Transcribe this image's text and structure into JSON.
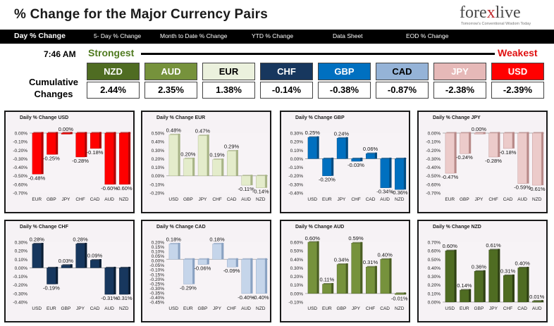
{
  "header": {
    "title": "% Change for the Major Currency Pairs",
    "logo_main": "fore",
    "logo_x": "x",
    "logo_end": "live",
    "logo_tagline": "Tomorrow's Conventional Wisdom Today"
  },
  "nav": {
    "items": [
      "Day % Change",
      "5- Day % Change",
      "Month to Date % Change",
      "YTD % Change",
      "Data Sheet",
      "EOD % Change"
    ]
  },
  "summary": {
    "time": "7:46 AM",
    "strongest_label": "Strongest",
    "weakest_label": "Weakest",
    "cumulative_label_1": "Cumulative",
    "cumulative_label_2": "Changes",
    "currencies": [
      {
        "name": "NZD",
        "value": "2.44%",
        "bg": "#4f6c22",
        "fg": "#ffffff"
      },
      {
        "name": "AUD",
        "value": "2.35%",
        "bg": "#76923c",
        "fg": "#ffffff"
      },
      {
        "name": "EUR",
        "value": "1.38%",
        "bg": "#ebf1dd",
        "fg": "#000000"
      },
      {
        "name": "CHF",
        "value": "-0.14%",
        "bg": "#17375e",
        "fg": "#ffffff"
      },
      {
        "name": "GBP",
        "value": "-0.38%",
        "bg": "#0070c0",
        "fg": "#ffffff"
      },
      {
        "name": "CAD",
        "value": "-0.87%",
        "bg": "#95b3d7",
        "fg": "#000000"
      },
      {
        "name": "JPY",
        "value": "-2.38%",
        "bg": "#e6b9b8",
        "fg": "#ffffff"
      },
      {
        "name": "USD",
        "value": "-2.39%",
        "bg": "#ff0000",
        "fg": "#ffffff"
      }
    ]
  },
  "chart_data": [
    {
      "type": "bar",
      "title": "Daily % Change USD",
      "categories": [
        "EUR",
        "GBP",
        "JPY",
        "CHF",
        "CAD",
        "AUD",
        "NZD"
      ],
      "values": [
        -0.48,
        -0.25,
        0.0,
        -0.28,
        -0.18,
        -0.6,
        -0.6
      ],
      "labels": [
        "-0.48%",
        "-0.25%",
        "0.00%",
        "-0.28%",
        "-0.18%",
        "-0.60%",
        "-0.60%"
      ],
      "ylim": [
        -0.7,
        0.0
      ],
      "ticks": [
        "0.00%",
        "-0.10%",
        "-0.20%",
        "-0.30%",
        "-0.40%",
        "-0.50%",
        "-0.60%",
        "-0.70%"
      ],
      "color": "#ff0000",
      "color_dark": "#b00000"
    },
    {
      "type": "bar",
      "title": "Daily % Change EUR",
      "categories": [
        "USD",
        "GBP",
        "JPY",
        "CHF",
        "CAD",
        "AUD",
        "NZD"
      ],
      "values": [
        0.48,
        0.2,
        0.47,
        0.19,
        0.29,
        -0.11,
        -0.14
      ],
      "labels": [
        "0.48%",
        "0.20%",
        "0.47%",
        "0.19%",
        "0.29%",
        "-0.11%",
        "-0.14%"
      ],
      "ylim": [
        -0.2,
        0.5
      ],
      "ticks": [
        "0.50%",
        "0.40%",
        "0.30%",
        "0.20%",
        "0.10%",
        "0.00%",
        "-0.10%",
        "-0.20%"
      ],
      "color": "#e4eccb",
      "color_dark": "#a8b487"
    },
    {
      "type": "bar",
      "title": "Daily % Change GBP",
      "categories": [
        "USD",
        "EUR",
        "JPY",
        "CHF",
        "CAD",
        "AUD",
        "NZD"
      ],
      "values": [
        0.25,
        -0.2,
        0.24,
        -0.03,
        0.06,
        -0.34,
        -0.36
      ],
      "labels": [
        "0.25%",
        "-0.20%",
        "0.24%",
        "-0.03%",
        "0.06%",
        "-0.34%",
        "-0.36%"
      ],
      "ylim": [
        -0.4,
        0.3
      ],
      "ticks": [
        "0.30%",
        "0.20%",
        "0.10%",
        "0.00%",
        "-0.10%",
        "-0.20%",
        "-0.30%",
        "-0.40%"
      ],
      "color": "#0070c0",
      "color_dark": "#004a80"
    },
    {
      "type": "bar",
      "title": "Daily % Change JPY",
      "categories": [
        "EUR",
        "GBP",
        "JPY",
        "CHF",
        "CAD",
        "AUD",
        "NZD"
      ],
      "values": [
        -0.47,
        -0.24,
        0.0,
        -0.28,
        -0.18,
        -0.59,
        -0.61
      ],
      "labels": [
        "-0.47%",
        "-0.24%",
        "0.00%",
        "-0.28%",
        "-0.18%",
        "-0.59%",
        "-0.61%"
      ],
      "ylim": [
        -0.7,
        0.0
      ],
      "ticks": [
        "0.00%",
        "-0.10%",
        "-0.20%",
        "-0.30%",
        "-0.40%",
        "-0.50%",
        "-0.60%",
        "-0.70%"
      ],
      "color": "#eccbca",
      "color_dark": "#b88a89"
    },
    {
      "type": "bar",
      "title": "Daily % Change CHF",
      "categories": [
        "USD",
        "EUR",
        "GBP",
        "JPY",
        "CAD",
        "AUD",
        "NZD"
      ],
      "values": [
        0.28,
        -0.19,
        0.03,
        0.28,
        0.09,
        -0.31,
        -0.31
      ],
      "labels": [
        "0.28%",
        "-0.19%",
        "0.03%",
        "0.28%",
        "0.09%",
        "-0.31%",
        "-0.31%"
      ],
      "ylim": [
        -0.4,
        0.3
      ],
      "ticks": [
        "0.30%",
        "0.20%",
        "0.10%",
        "0.00%",
        "-0.10%",
        "-0.20%",
        "-0.30%",
        "-0.40%"
      ],
      "color": "#17375e",
      "color_dark": "#0a1d33"
    },
    {
      "type": "bar",
      "title": "Daily % Change CAD",
      "categories": [
        "USD",
        "EUR",
        "GBP",
        "JPY",
        "CHF",
        "AUD",
        "NZD"
      ],
      "values": [
        0.18,
        -0.29,
        -0.06,
        0.18,
        -0.09,
        -0.4,
        -0.4
      ],
      "labels": [
        "0.18%",
        "-0.29%",
        "-0.06%",
        "0.18%",
        "-0.09%",
        "-0.40%",
        "-0.40%"
      ],
      "ylim": [
        -0.5,
        0.2
      ],
      "ticks": [
        "0.20%",
        "0.15%",
        "0.10%",
        "0.05%",
        "0.00%",
        "-0.05%",
        "-0.10%",
        "-0.15%",
        "-0.20%",
        "-0.25%",
        "-0.30%",
        "-0.35%",
        "-0.40%",
        "-0.45%"
      ],
      "color": "#c5d5ea",
      "color_dark": "#8aa2c2"
    },
    {
      "type": "bar",
      "title": "Daily % Change AUD",
      "categories": [
        "USD",
        "EUR",
        "GBP",
        "JPY",
        "CHF",
        "CAD",
        "NZD"
      ],
      "values": [
        0.6,
        0.11,
        0.34,
        0.59,
        0.31,
        0.4,
        -0.01
      ],
      "labels": [
        "0.60%",
        "0.11%",
        "0.34%",
        "0.59%",
        "0.31%",
        "0.40%",
        "-0.01%"
      ],
      "ylim": [
        -0.1,
        0.6
      ],
      "ticks": [
        "0.60%",
        "0.50%",
        "0.40%",
        "0.30%",
        "0.20%",
        "0.10%",
        "0.00%",
        "-0.10%"
      ],
      "color": "#76923c",
      "color_dark": "#4a5e22"
    },
    {
      "type": "bar",
      "title": "Daily % Change NZD",
      "categories": [
        "USD",
        "EUR",
        "GBP",
        "JPY",
        "CHF",
        "CAD",
        "AUD"
      ],
      "values": [
        0.6,
        0.14,
        0.36,
        0.61,
        0.31,
        0.4,
        0.01
      ],
      "labels": [
        "0.60%",
        "0.14%",
        "0.36%",
        "0.61%",
        "0.31%",
        "0.40%",
        "0.01%"
      ],
      "ylim": [
        0.0,
        0.7
      ],
      "ticks": [
        "0.70%",
        "0.60%",
        "0.50%",
        "0.40%",
        "0.30%",
        "0.20%",
        "0.10%",
        "0.00%"
      ],
      "color": "#4f6c22",
      "color_dark": "#2e4012"
    }
  ]
}
